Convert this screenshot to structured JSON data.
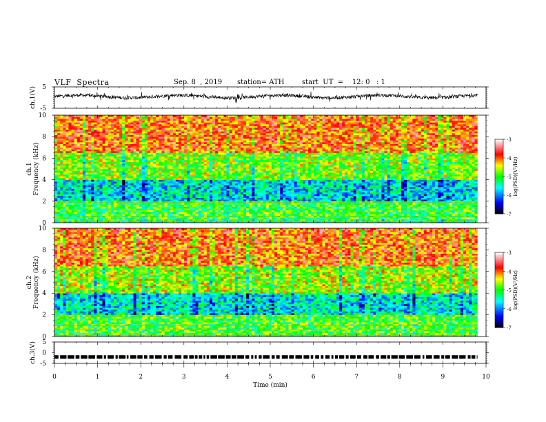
{
  "header": {
    "title": "VLF  Spectra",
    "date": "Sep. 8  , 2019",
    "station": "station= ATH",
    "start": "start  UT  =    12: 0   : 1"
  },
  "chart_data": [
    {
      "type": "line",
      "name": "ch1-waveform",
      "ylabel": "ch.1(V)",
      "ylim": [
        -5,
        5
      ],
      "yticks": [
        5,
        -5
      ],
      "x_range_min": [
        0,
        9.8
      ],
      "samples_description": "dense black trace oscillating roughly between -1 and 2 V, baseline near +0.5 V"
    },
    {
      "type": "heatmap",
      "name": "ch1-spectrogram",
      "ylabel": "ch.1\nFrequency  (kHz)",
      "ylim": [
        0,
        10
      ],
      "yticks": [
        0,
        2,
        4,
        6,
        8,
        10
      ],
      "x_range_min": [
        0,
        9.8
      ],
      "colorbar": {
        "label": "log(PSD)(V²/Hz)",
        "range": [
          -7,
          -3
        ],
        "ticks": [
          -3,
          -4,
          -5,
          -6,
          -7
        ],
        "colors": [
          "#000000",
          "#0000ff",
          "#00ffff",
          "#00ff00",
          "#ffff00",
          "#ff0000",
          "#ffffff"
        ]
      },
      "bands_khz": [
        {
          "from": 0,
          "to": 0.4,
          "log_psd": -5.2
        },
        {
          "from": 0.4,
          "to": 2.0,
          "log_psd": -5.0
        },
        {
          "from": 2.0,
          "to": 4.0,
          "log_psd": -5.6
        },
        {
          "from": 4.0,
          "to": 6.5,
          "log_psd": -4.7
        },
        {
          "from": 6.5,
          "to": 10.0,
          "log_psd": -3.9
        }
      ]
    },
    {
      "type": "heatmap",
      "name": "ch2-spectrogram",
      "ylabel": "ch.2\nFrequency  (kHz)",
      "ylim": [
        0,
        10
      ],
      "yticks": [
        0,
        2,
        4,
        6,
        8,
        10
      ],
      "x_range_min": [
        0,
        9.8
      ],
      "colorbar": {
        "label": "log(PSD)(V²/Hz)",
        "range": [
          -7,
          -3
        ],
        "ticks": [
          -3,
          -4,
          -5,
          -6,
          -7
        ],
        "colors": [
          "#000000",
          "#0000ff",
          "#00ffff",
          "#00ff00",
          "#ffff00",
          "#ff0000",
          "#ffffff"
        ]
      },
      "bands_khz": [
        {
          "from": 0,
          "to": 0.4,
          "log_psd": -5.0
        },
        {
          "from": 0.4,
          "to": 2.0,
          "log_psd": -4.9
        },
        {
          "from": 2.0,
          "to": 4.0,
          "log_psd": -5.5
        },
        {
          "from": 4.0,
          "to": 6.5,
          "log_psd": -4.6
        },
        {
          "from": 6.5,
          "to": 10.0,
          "log_psd": -3.9
        }
      ]
    },
    {
      "type": "line",
      "name": "ch3-signal",
      "ylabel": "ch.3(V)",
      "ylim": [
        -5,
        5
      ],
      "yticks": [
        5,
        0,
        -5
      ],
      "level_v": -2.0,
      "x_range_min": [
        0,
        9.8
      ]
    }
  ],
  "xaxis": {
    "label": "Time  (min)",
    "ticks": [
      0,
      1,
      2,
      3,
      4,
      5,
      6,
      7,
      8,
      9,
      10
    ],
    "xlim": [
      0,
      10
    ]
  }
}
